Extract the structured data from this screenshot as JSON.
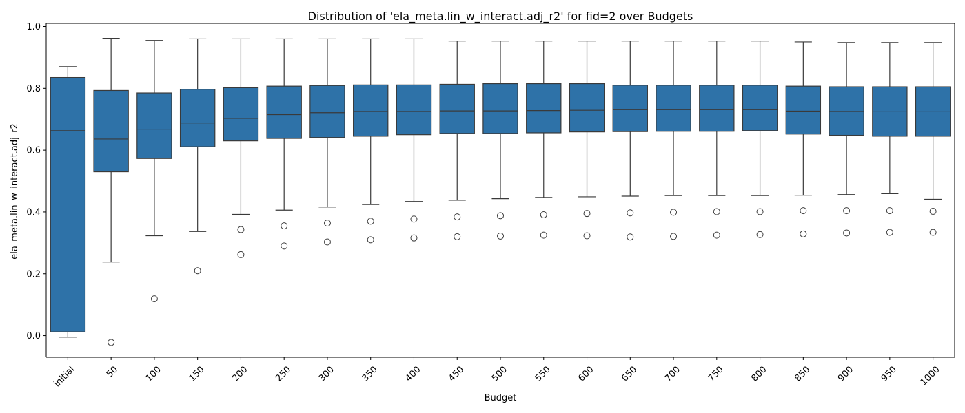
{
  "chart_data": {
    "type": "box",
    "title": "Distribution of 'ela_meta.lin_w_interact.adj_r2' for fid=2 over Budgets",
    "xlabel": "Budget",
    "ylabel": "ela_meta.lin_w_interact.adj_r2",
    "ylim": [
      -0.07,
      1.01
    ],
    "yticks": [
      "0.0",
      "0.2",
      "0.4",
      "0.6",
      "0.8",
      "1.0"
    ],
    "grid": false,
    "box_color": "#2e72a8",
    "categories": [
      "initial",
      "50",
      "100",
      "150",
      "200",
      "250",
      "300",
      "350",
      "400",
      "450",
      "500",
      "550",
      "600",
      "650",
      "700",
      "750",
      "800",
      "850",
      "900",
      "950",
      "1000"
    ],
    "boxes": [
      {
        "whisker_low": -0.005,
        "q1": 0.012,
        "median": 0.663,
        "q3": 0.835,
        "whisker_high": 0.87,
        "outliers": []
      },
      {
        "whisker_low": 0.238,
        "q1": 0.53,
        "median": 0.636,
        "q3": 0.793,
        "whisker_high": 0.962,
        "outliers": [
          -0.022
        ]
      },
      {
        "whisker_low": 0.323,
        "q1": 0.573,
        "median": 0.668,
        "q3": 0.785,
        "whisker_high": 0.955,
        "outliers": [
          0.119
        ]
      },
      {
        "whisker_low": 0.337,
        "q1": 0.611,
        "median": 0.688,
        "q3": 0.797,
        "whisker_high": 0.96,
        "outliers": [
          0.21
        ]
      },
      {
        "whisker_low": 0.392,
        "q1": 0.63,
        "median": 0.703,
        "q3": 0.802,
        "whisker_high": 0.96,
        "outliers": [
          0.343,
          0.262
        ]
      },
      {
        "whisker_low": 0.406,
        "q1": 0.638,
        "median": 0.715,
        "q3": 0.807,
        "whisker_high": 0.96,
        "outliers": [
          0.355,
          0.29
        ]
      },
      {
        "whisker_low": 0.416,
        "q1": 0.641,
        "median": 0.721,
        "q3": 0.809,
        "whisker_high": 0.96,
        "outliers": [
          0.364,
          0.303
        ]
      },
      {
        "whisker_low": 0.424,
        "q1": 0.645,
        "median": 0.725,
        "q3": 0.811,
        "whisker_high": 0.96,
        "outliers": [
          0.37,
          0.31
        ]
      },
      {
        "whisker_low": 0.434,
        "q1": 0.65,
        "median": 0.725,
        "q3": 0.811,
        "whisker_high": 0.96,
        "outliers": [
          0.377,
          0.316
        ]
      },
      {
        "whisker_low": 0.438,
        "q1": 0.654,
        "median": 0.727,
        "q3": 0.813,
        "whisker_high": 0.953,
        "outliers": [
          0.384,
          0.32
        ]
      },
      {
        "whisker_low": 0.443,
        "q1": 0.654,
        "median": 0.727,
        "q3": 0.815,
        "whisker_high": 0.953,
        "outliers": [
          0.388,
          0.322
        ]
      },
      {
        "whisker_low": 0.447,
        "q1": 0.656,
        "median": 0.728,
        "q3": 0.815,
        "whisker_high": 0.953,
        "outliers": [
          0.391,
          0.325
        ]
      },
      {
        "whisker_low": 0.449,
        "q1": 0.659,
        "median": 0.729,
        "q3": 0.815,
        "whisker_high": 0.953,
        "outliers": [
          0.395,
          0.323
        ]
      },
      {
        "whisker_low": 0.451,
        "q1": 0.66,
        "median": 0.731,
        "q3": 0.81,
        "whisker_high": 0.953,
        "outliers": [
          0.397,
          0.319
        ]
      },
      {
        "whisker_low": 0.453,
        "q1": 0.661,
        "median": 0.731,
        "q3": 0.81,
        "whisker_high": 0.953,
        "outliers": [
          0.399,
          0.321
        ]
      },
      {
        "whisker_low": 0.453,
        "q1": 0.661,
        "median": 0.731,
        "q3": 0.81,
        "whisker_high": 0.953,
        "outliers": [
          0.401,
          0.325
        ]
      },
      {
        "whisker_low": 0.453,
        "q1": 0.663,
        "median": 0.731,
        "q3": 0.81,
        "whisker_high": 0.953,
        "outliers": [
          0.401,
          0.327
        ]
      },
      {
        "whisker_low": 0.454,
        "q1": 0.652,
        "median": 0.726,
        "q3": 0.807,
        "whisker_high": 0.95,
        "outliers": [
          0.404,
          0.329
        ]
      },
      {
        "whisker_low": 0.456,
        "q1": 0.648,
        "median": 0.725,
        "q3": 0.805,
        "whisker_high": 0.948,
        "outliers": [
          0.404,
          0.332
        ]
      },
      {
        "whisker_low": 0.459,
        "q1": 0.645,
        "median": 0.724,
        "q3": 0.805,
        "whisker_high": 0.948,
        "outliers": [
          0.404,
          0.334
        ]
      },
      {
        "whisker_low": 0.441,
        "q1": 0.645,
        "median": 0.724,
        "q3": 0.805,
        "whisker_high": 0.948,
        "outliers": [
          0.402,
          0.334
        ]
      }
    ]
  }
}
